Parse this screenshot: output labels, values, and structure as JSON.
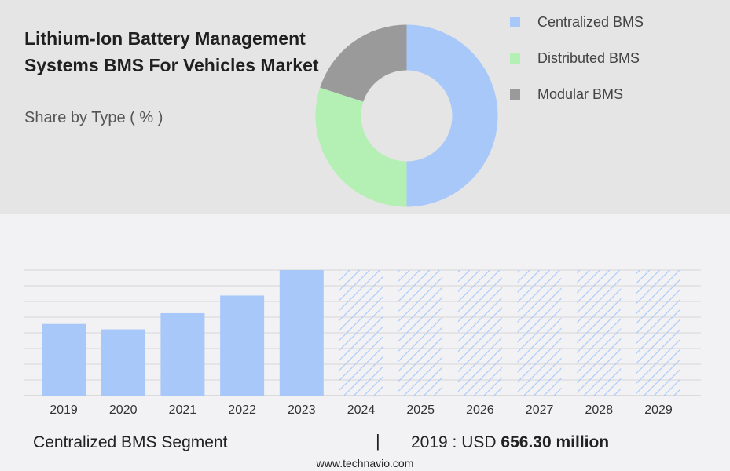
{
  "header": {
    "title": "Lithium-Ion Battery Management Systems BMS For Vehicles Market",
    "subtitle": "Share by Type ( % )"
  },
  "colors": {
    "centralized": "#a8c8fa",
    "distributed": "#b4f0b4",
    "modular": "#9a9a9a",
    "top_panel": "#e5e5e5",
    "background": "#f2f2f4"
  },
  "chart_data": [
    {
      "type": "pie",
      "variant": "donut",
      "legend": [
        "Centralized BMS",
        "Distributed BMS",
        "Modular BMS"
      ],
      "legend_position": "right",
      "series": [
        {
          "name": "Centralized BMS",
          "value": 50
        },
        {
          "name": "Distributed BMS",
          "value": 30
        },
        {
          "name": "Modular BMS",
          "value": 20
        }
      ]
    },
    {
      "type": "bar",
      "categories": [
        "2019",
        "2020",
        "2021",
        "2022",
        "2023",
        "2024",
        "2025",
        "2026",
        "2027",
        "2028",
        "2029"
      ],
      "values": [
        656.3,
        607,
        755,
        917,
        1150,
        null,
        null,
        null,
        null,
        null,
        null
      ],
      "forecast_categories": [
        "2024",
        "2025",
        "2026",
        "2027",
        "2028",
        "2029"
      ],
      "forecast_style": "hatched",
      "ylim": [
        0,
        1150
      ],
      "grid": true,
      "y_tick_labels_shown": false
    }
  ],
  "footer": {
    "segment": "Centralized BMS Segment",
    "separator": "|",
    "value_prefix": "2019 : USD",
    "value_bold": "656.30 million"
  },
  "source": "www.technavio.com"
}
